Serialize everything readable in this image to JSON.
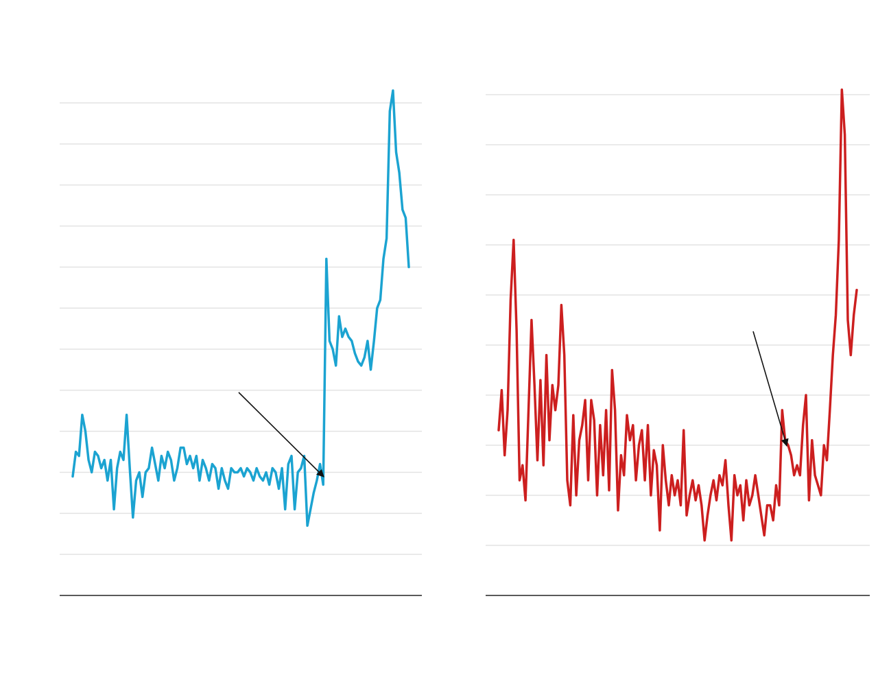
{
  "chart_data": [
    {
      "type": "line",
      "ylim": [
        0,
        12
      ],
      "yticks": [
        0,
        1,
        2,
        3,
        4,
        5,
        6,
        7,
        8,
        9,
        10,
        11,
        12
      ],
      "grid": true,
      "series": [
        {
          "color": "#1ba3d1",
          "values": [
            2.9,
            3.5,
            3.4,
            4.4,
            4.0,
            3.3,
            3.0,
            3.5,
            3.4,
            3.1,
            3.3,
            2.8,
            3.3,
            2.1,
            3.1,
            3.5,
            3.3,
            4.4,
            3.1,
            1.9,
            2.8,
            3.0,
            2.4,
            3.0,
            3.1,
            3.6,
            3.2,
            2.8,
            3.4,
            3.1,
            3.5,
            3.3,
            2.8,
            3.1,
            3.6,
            3.6,
            3.2,
            3.4,
            3.1,
            3.4,
            2.8,
            3.3,
            3.1,
            2.8,
            3.2,
            3.1,
            2.6,
            3.1,
            2.8,
            2.6,
            3.1,
            3.0,
            3.0,
            3.1,
            2.9,
            3.1,
            3.0,
            2.8,
            3.1,
            2.9,
            2.8,
            3.0,
            2.7,
            3.1,
            3.0,
            2.6,
            3.1,
            2.1,
            3.2,
            3.4,
            2.1,
            3.0,
            3.1,
            3.4,
            1.7,
            2.1,
            2.5,
            2.8,
            3.2,
            2.7,
            8.2,
            6.2,
            6.0,
            5.6,
            6.8,
            6.3,
            6.5,
            6.3,
            6.2,
            5.9,
            5.7,
            5.6,
            5.8,
            6.2,
            5.5,
            6.2,
            7.0,
            7.2,
            8.2,
            8.7,
            11.8,
            12.3,
            10.8,
            10.3,
            9.4,
            9.2,
            8.0
          ]
        }
      ]
    },
    {
      "type": "line",
      "ylim": [
        0,
        10
      ],
      "yticks": [
        0,
        1,
        2,
        3,
        4,
        5,
        6,
        7,
        8,
        9,
        10
      ],
      "grid": true,
      "series": [
        {
          "color": "#cc1f1f",
          "values": [
            3.3,
            4.1,
            2.8,
            3.7,
            5.9,
            7.1,
            5.3,
            2.3,
            2.6,
            1.9,
            3.7,
            5.5,
            4.2,
            2.7,
            4.3,
            2.6,
            4.8,
            3.1,
            4.2,
            3.7,
            4.2,
            5.8,
            4.8,
            2.3,
            1.8,
            3.6,
            2.0,
            3.1,
            3.4,
            3.9,
            2.3,
            3.9,
            3.5,
            2.0,
            3.4,
            2.4,
            3.7,
            2.1,
            4.5,
            3.7,
            1.7,
            2.8,
            2.4,
            3.6,
            3.1,
            3.4,
            2.3,
            3.0,
            3.3,
            2.3,
            3.4,
            2.0,
            2.9,
            2.6,
            1.3,
            3.0,
            2.3,
            1.8,
            2.4,
            2.0,
            2.3,
            1.8,
            3.3,
            1.6,
            2.0,
            2.3,
            1.9,
            2.2,
            1.8,
            1.1,
            1.6,
            2.0,
            2.3,
            1.9,
            2.4,
            2.2,
            2.7,
            1.8,
            1.1,
            2.4,
            2.0,
            2.2,
            1.5,
            2.3,
            1.8,
            2.0,
            2.4,
            2.0,
            1.6,
            1.2,
            1.8,
            1.8,
            1.5,
            2.2,
            1.8,
            3.7,
            3.1,
            3.0,
            2.8,
            2.4,
            2.6,
            2.4,
            3.4,
            4.0,
            1.9,
            3.1,
            2.4,
            2.2,
            2.0,
            3.0,
            2.7,
            3.7,
            4.8,
            5.6,
            7.1,
            10.1,
            9.2,
            5.5,
            4.8,
            5.6,
            6.1
          ]
        }
      ]
    }
  ]
}
